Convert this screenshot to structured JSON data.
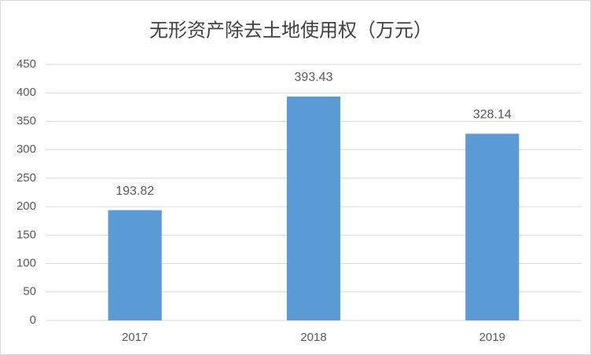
{
  "chart_data": {
    "type": "bar",
    "title": "无形资产除去土地使用权（万元）",
    "categories": [
      "2017",
      "2018",
      "2019"
    ],
    "values": [
      193.82,
      393.43,
      328.14
    ],
    "color": "#5b9bd5",
    "ylim": [
      0,
      450
    ],
    "yticks": [
      0,
      50,
      100,
      150,
      200,
      250,
      300,
      350,
      400,
      450
    ],
    "grid": true
  }
}
